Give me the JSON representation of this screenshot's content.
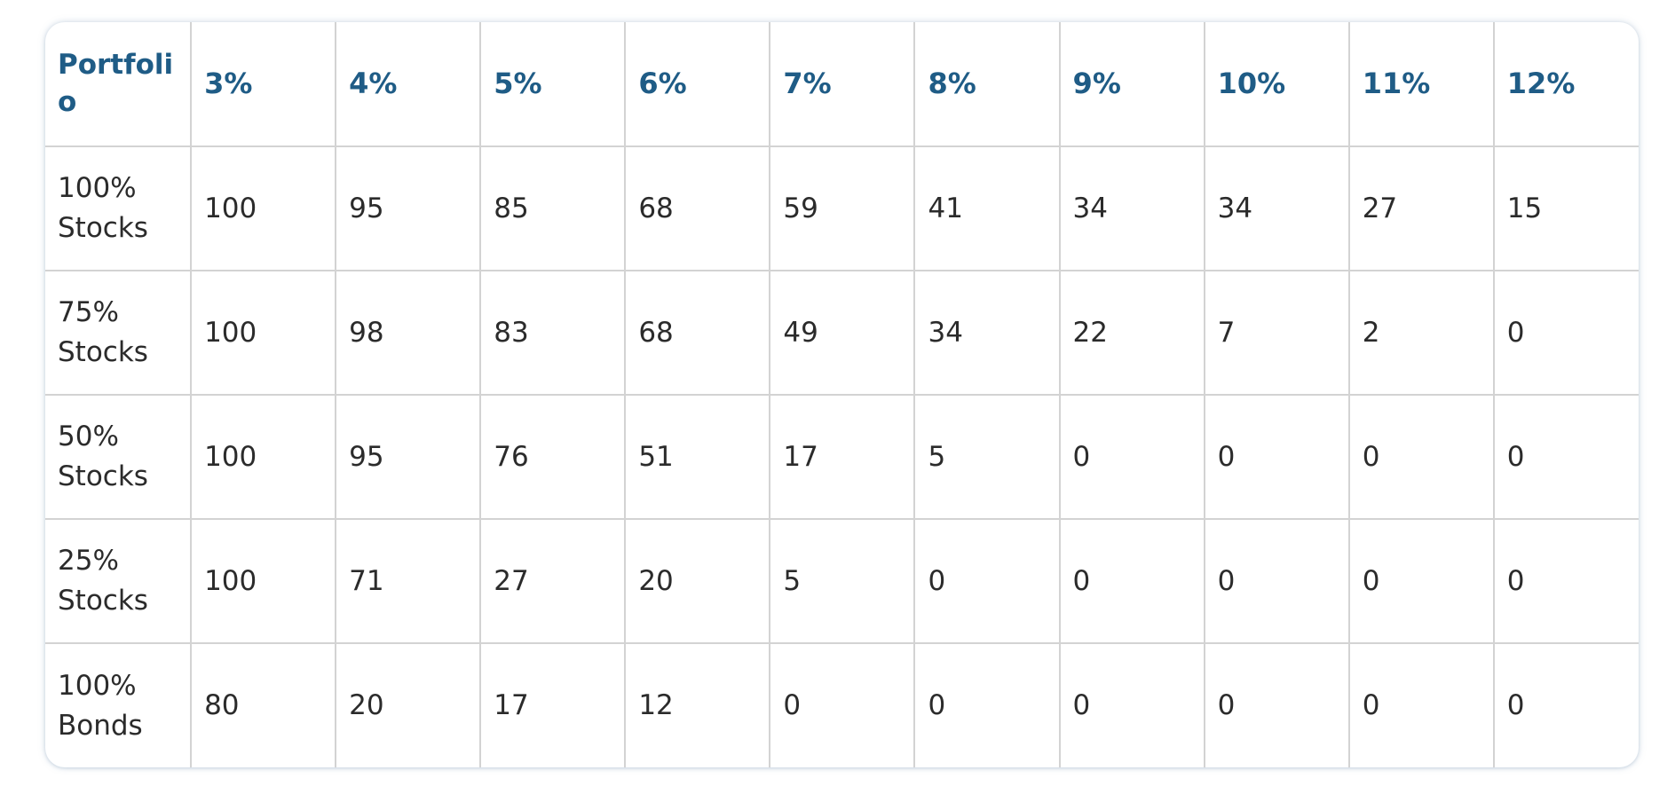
{
  "table": {
    "header": {
      "portfolio": "Portfolio",
      "rates": [
        "3%",
        "4%",
        "5%",
        "6%",
        "7%",
        "8%",
        "9%",
        "10%",
        "11%",
        "12%"
      ]
    },
    "rows": [
      {
        "label": "100% Stocks",
        "values": [
          "100",
          "95",
          "85",
          "68",
          "59",
          "41",
          "34",
          "34",
          "27",
          "15"
        ]
      },
      {
        "label": "75% Stocks",
        "values": [
          "100",
          "98",
          "83",
          "68",
          "49",
          "34",
          "22",
          "7",
          "2",
          "0"
        ]
      },
      {
        "label": "50% Stocks",
        "values": [
          "100",
          "95",
          "76",
          "51",
          "17",
          "5",
          "0",
          "0",
          "0",
          "0"
        ]
      },
      {
        "label": "25% Stocks",
        "values": [
          "100",
          "71",
          "27",
          "20",
          "5",
          "0",
          "0",
          "0",
          "0",
          "0"
        ]
      },
      {
        "label": "100% Bonds",
        "values": [
          "80",
          "20",
          "17",
          "12",
          "0",
          "0",
          "0",
          "0",
          "0",
          "0"
        ]
      }
    ]
  },
  "colors": {
    "header_text": "#1f5c86",
    "body_text": "#2b2b2b",
    "grid": "#d3d3d3"
  }
}
